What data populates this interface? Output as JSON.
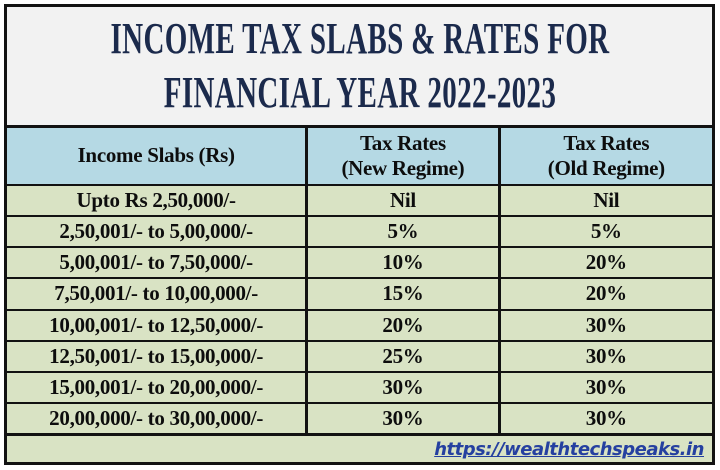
{
  "title": {
    "line1": "INCOME TAX SLABS & RATES FOR",
    "line2": "FINANCIAL YEAR 2022-2023"
  },
  "table": {
    "headers": {
      "income_slabs": "Income Slabs (Rs)",
      "new_regime_line1": "Tax Rates",
      "new_regime_line2": "(New Regime)",
      "old_regime_line1": "Tax Rates",
      "old_regime_line2": "(Old Regime)"
    },
    "rows": [
      {
        "slab": "Upto Rs 2,50,000/-",
        "new_regime": "Nil",
        "old_regime": "Nil"
      },
      {
        "slab": "2,50,001/- to 5,00,000/-",
        "new_regime": "5%",
        "old_regime": "5%"
      },
      {
        "slab": "5,00,001/- to 7,50,000/-",
        "new_regime": "10%",
        "old_regime": "20%"
      },
      {
        "slab": "7,50,001/- to 10,00,000/-",
        "new_regime": "15%",
        "old_regime": "20%"
      },
      {
        "slab": "10,00,001/- to 12,50,000/-",
        "new_regime": "20%",
        "old_regime": "30%"
      },
      {
        "slab": "12,50,001/- to 15,00,000/-",
        "new_regime": "25%",
        "old_regime": "30%"
      },
      {
        "slab": "15,00,001/- to 20,00,000/-",
        "new_regime": "30%",
        "old_regime": "30%"
      },
      {
        "slab": "20,00,000/- to 30,00,000/-",
        "new_regime": "30%",
        "old_regime": "30%"
      }
    ]
  },
  "footer": {
    "link_text": "https://wealthtechspeaks.in"
  },
  "colors": {
    "title_bg": "#f2f2f2",
    "title_text": "#1b2a4c",
    "header_bg": "#b5d9e4",
    "row_bg": "#d9e3c4",
    "border": "#121212",
    "link_text": "#2540a0"
  },
  "chart_data": {
    "type": "table",
    "title": "INCOME TAX SLABS & RATES FOR FINANCIAL YEAR 2022-2023",
    "columns": [
      "Income Slabs (Rs)",
      "Tax Rates (New Regime)",
      "Tax Rates (Old Regime)"
    ],
    "rows": [
      [
        "Upto Rs 2,50,000/-",
        "Nil",
        "Nil"
      ],
      [
        "2,50,001/- to 5,00,000/-",
        "5%",
        "5%"
      ],
      [
        "5,00,001/- to 7,50,000/-",
        "10%",
        "20%"
      ],
      [
        "7,50,001/- to 10,00,000/-",
        "15%",
        "20%"
      ],
      [
        "10,00,001/- to 12,50,000/-",
        "20%",
        "30%"
      ],
      [
        "12,50,001/- to 15,00,000/-",
        "25%",
        "30%"
      ],
      [
        "15,00,001/- to 20,00,000/-",
        "30%",
        "30%"
      ],
      [
        "20,00,000/- to 30,00,000/-",
        "30%",
        "30%"
      ]
    ],
    "annotations": [
      "https://wealthtechspeaks.in"
    ]
  }
}
